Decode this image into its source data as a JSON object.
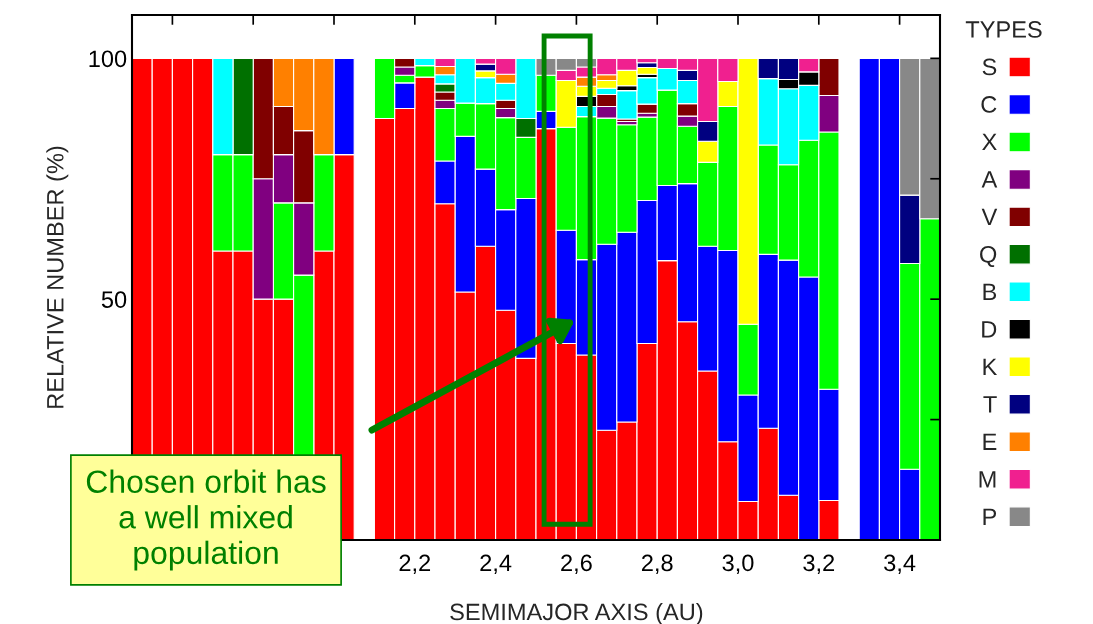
{
  "chart_data": {
    "type": "bar",
    "stacked": true,
    "xlabel": "SEMIMAJOR AXIS (AU)",
    "ylabel": "RELATIVE NUMBER (%)",
    "legend_title": "TYPES",
    "legend": "right",
    "x": [
      1.525,
      1.575,
      1.625,
      1.675,
      1.725,
      1.775,
      1.825,
      1.875,
      1.925,
      1.975,
      2.025,
      2.075,
      2.125,
      2.175,
      2.225,
      2.275,
      2.325,
      2.375,
      2.425,
      2.475,
      2.525,
      2.575,
      2.625,
      2.675,
      2.725,
      2.775,
      2.825,
      2.875,
      2.925,
      2.975,
      3.025,
      3.075,
      3.125,
      3.175,
      3.225,
      3.275,
      3.325,
      3.375,
      3.425,
      3.475
    ],
    "xlim": [
      1.5,
      3.5
    ],
    "xticks": [
      {
        "value": 1.6,
        "label": null
      },
      {
        "value": 1.8,
        "label": null
      },
      {
        "value": 2.0,
        "label": null
      },
      {
        "value": 2.2,
        "label": "2,2"
      },
      {
        "value": 2.4,
        "label": "2,4"
      },
      {
        "value": 2.6,
        "label": "2,6"
      },
      {
        "value": 2.8,
        "label": "2,8"
      },
      {
        "value": 3.0,
        "label": "3,0"
      },
      {
        "value": 3.2,
        "label": "3,2"
      },
      {
        "value": 3.4,
        "label": "3,4"
      }
    ],
    "ylim": [
      0,
      109
    ],
    "yticks": [
      {
        "value": 25,
        "label": null
      },
      50,
      {
        "value": 75,
        "label": null
      },
      100
    ],
    "series": [
      {
        "name": "S",
        "color": "#ff0000",
        "values": [
          100,
          100,
          100,
          100,
          60,
          60,
          50,
          50,
          null,
          60,
          80,
          null,
          87.5,
          89.6,
          96.1,
          69.8,
          51.5,
          61,
          47.7,
          37.7,
          85.4,
          40.8,
          38.4,
          22.8,
          24.5,
          40.8,
          58,
          45.3,
          35.1,
          20.4,
          8.0,
          23.2,
          9.3,
          null,
          8.2,
          null,
          null,
          null,
          null,
          null
        ]
      },
      {
        "name": "C",
        "color": "#0000ff",
        "values": [
          null,
          null,
          null,
          null,
          null,
          null,
          null,
          null,
          null,
          null,
          20,
          null,
          null,
          5.3,
          null,
          8.9,
          32.3,
          16,
          20.9,
          33.2,
          3.6,
          23.5,
          19.8,
          38.6,
          39.4,
          29.7,
          15.6,
          28.7,
          25.9,
          39.7,
          22.1,
          36.1,
          48.8,
          54.6,
          23.1,
          null,
          100,
          100,
          14.7,
          null
        ]
      },
      {
        "name": "X",
        "color": "#00ff00",
        "values": [
          null,
          null,
          null,
          null,
          20,
          20,
          null,
          20,
          55,
          20,
          null,
          null,
          12.5,
          1.6,
          2.4,
          10.9,
          6.9,
          13.6,
          19.1,
          12.7,
          7.5,
          21.4,
          29.7,
          26.2,
          22.3,
          17.3,
          19.8,
          11.9,
          17.4,
          29.9,
          14.7,
          22.7,
          19.8,
          28.4,
          53.4,
          null,
          null,
          null,
          42.7,
          66.7
        ]
      },
      {
        "name": "A",
        "color": "#800080",
        "values": [
          null,
          null,
          null,
          null,
          null,
          null,
          25,
          10,
          15,
          null,
          null,
          null,
          null,
          1.7,
          null,
          1.7,
          null,
          null,
          1.9,
          null,
          null,
          null,
          null,
          2.4,
          0.7,
          0.8,
          null,
          2.1,
          null,
          null,
          null,
          null,
          null,
          null,
          7.6,
          null,
          null,
          null,
          null,
          null
        ]
      },
      {
        "name": "V",
        "color": "#800000",
        "values": [
          null,
          null,
          null,
          null,
          null,
          null,
          25,
          10,
          15,
          null,
          null,
          null,
          null,
          1.8,
          null,
          1.7,
          null,
          null,
          1.7,
          null,
          null,
          null,
          null,
          2.5,
          0.5,
          1.9,
          null,
          2.6,
          null,
          null,
          null,
          null,
          null,
          null,
          7.7,
          null,
          null,
          null,
          null,
          null
        ]
      },
      {
        "name": "Q",
        "color": "#007000",
        "values": [
          null,
          null,
          null,
          null,
          null,
          20,
          null,
          null,
          null,
          null,
          null,
          null,
          null,
          null,
          null,
          1.7,
          null,
          null,
          null,
          3.9,
          null,
          null,
          null,
          null,
          null,
          null,
          null,
          null,
          null,
          null,
          null,
          null,
          null,
          null,
          null,
          null,
          null,
          null,
          null,
          null
        ]
      },
      {
        "name": "B",
        "color": "#00ffff",
        "values": [
          null,
          null,
          null,
          null,
          20,
          null,
          null,
          null,
          null,
          null,
          null,
          null,
          null,
          null,
          1.5,
          1.9,
          9.3,
          5.4,
          3.5,
          12.5,
          null,
          null,
          2.1,
          1.3,
          5.9,
          5.5,
          4.5,
          4.8,
          null,
          null,
          null,
          13.8,
          15.8,
          11.4,
          null,
          null,
          null,
          null,
          null,
          null
        ]
      },
      {
        "name": "D",
        "color": "#000000",
        "values": [
          null,
          null,
          null,
          null,
          null,
          null,
          null,
          null,
          null,
          null,
          null,
          null,
          null,
          null,
          null,
          null,
          null,
          null,
          null,
          null,
          null,
          null,
          2.1,
          null,
          1.0,
          0.7,
          null,
          null,
          null,
          null,
          null,
          null,
          1.9,
          2.8,
          null,
          null,
          null,
          null,
          null,
          null
        ]
      },
      {
        "name": "K",
        "color": "#ffff00",
        "values": [
          null,
          null,
          null,
          null,
          null,
          null,
          null,
          null,
          null,
          null,
          null,
          null,
          null,
          null,
          null,
          null,
          null,
          1.4,
          null,
          null,
          null,
          9.7,
          2.1,
          1.6,
          3.2,
          1.4,
          null,
          null,
          4.4,
          5.2,
          55.2,
          null,
          null,
          null,
          null,
          null,
          null,
          null,
          null,
          null
        ]
      },
      {
        "name": "T",
        "color": "#000080",
        "values": [
          null,
          null,
          null,
          null,
          null,
          null,
          null,
          null,
          null,
          null,
          null,
          null,
          null,
          null,
          null,
          null,
          null,
          1.4,
          null,
          null,
          null,
          null,
          null,
          null,
          null,
          1.0,
          null,
          2.1,
          4.1,
          null,
          null,
          4.2,
          4.4,
          null,
          null,
          null,
          null,
          null,
          14.2,
          null
        ]
      },
      {
        "name": "E",
        "color": "#ff8000",
        "values": [
          null,
          null,
          null,
          null,
          null,
          null,
          null,
          10,
          15,
          20,
          null,
          null,
          null,
          null,
          null,
          1.7,
          null,
          null,
          1.9,
          null,
          null,
          null,
          1.9,
          1.2,
          null,
          null,
          null,
          null,
          null,
          null,
          null,
          null,
          null,
          null,
          null,
          null,
          null,
          null,
          null,
          null
        ]
      },
      {
        "name": "M",
        "color": "#f0208f",
        "values": [
          null,
          null,
          null,
          null,
          null,
          null,
          null,
          null,
          null,
          null,
          null,
          null,
          null,
          null,
          null,
          1.7,
          null,
          1.2,
          3.3,
          null,
          null,
          2.1,
          2.1,
          3.4,
          2.5,
          0.9,
          2.1,
          2.5,
          13.1,
          4.8,
          null,
          null,
          null,
          2.8,
          null,
          null,
          null,
          null,
          null,
          null
        ]
      },
      {
        "name": "P",
        "color": "#888888",
        "values": [
          null,
          null,
          null,
          null,
          null,
          null,
          null,
          null,
          null,
          null,
          null,
          null,
          null,
          null,
          null,
          null,
          null,
          null,
          null,
          null,
          3.5,
          2.5,
          1.8,
          null,
          null,
          null,
          null,
          null,
          null,
          null,
          null,
          null,
          null,
          null,
          null,
          null,
          null,
          null,
          28.4,
          33.3
        ]
      }
    ],
    "annotations": [
      "Chosen orbit has\na well mixed\npopulation"
    ]
  }
}
